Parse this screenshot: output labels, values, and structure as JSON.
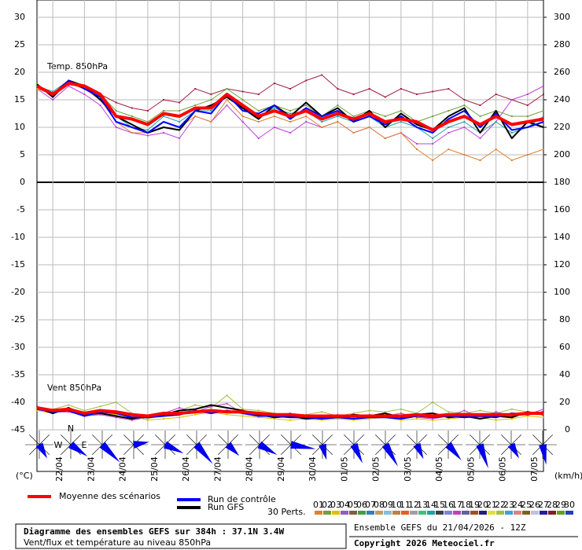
{
  "chart_data": {
    "type": "line",
    "labels": {
      "temp": "Temp. 850hPa",
      "wind": "Vent 850hPa",
      "y_unit": "(°C)",
      "y2_unit": "(km/h)",
      "perts": "30 Perts."
    },
    "footer": {
      "title": "Diagramme des ensembles GEFS sur 384h : 37.1N 3.4W",
      "subtitle": "Vent/flux et température au niveau 850hPa",
      "run": "Ensemble GEFS du 21/04/2026 - 12Z",
      "copyright": "Copyright 2026 Meteociel.fr"
    },
    "rose_labels": [
      "N",
      "W",
      "E"
    ],
    "x": [
      0,
      12,
      24,
      36,
      48,
      60,
      72,
      84,
      96,
      108,
      120,
      132,
      144,
      156,
      168,
      180,
      192,
      204,
      216,
      228,
      240,
      252,
      264,
      276,
      288,
      300,
      312,
      324,
      336,
      348,
      360,
      372,
      384
    ],
    "xlim": [
      0,
      384
    ],
    "xticks": [
      {
        "value": 12,
        "label": "22/04"
      },
      {
        "value": 36,
        "label": "23/04"
      },
      {
        "value": 60,
        "label": "24/04"
      },
      {
        "value": 84,
        "label": "25/04"
      },
      {
        "value": 108,
        "label": "26/04"
      },
      {
        "value": 132,
        "label": "27/04"
      },
      {
        "value": 156,
        "label": "28/04"
      },
      {
        "value": 180,
        "label": "29/04"
      },
      {
        "value": 204,
        "label": "30/04"
      },
      {
        "value": 228,
        "label": "01/05"
      },
      {
        "value": 252,
        "label": "02/05"
      },
      {
        "value": 276,
        "label": "03/05"
      },
      {
        "value": 300,
        "label": "04/05"
      },
      {
        "value": 324,
        "label": "05/05"
      },
      {
        "value": 348,
        "label": "06/05"
      },
      {
        "value": 372,
        "label": "07/05"
      }
    ],
    "ylim": [
      -45,
      30
    ],
    "yticks": [
      30,
      25,
      20,
      15,
      10,
      5,
      0,
      -5,
      -10,
      -15,
      -20,
      -25,
      -30,
      -35,
      -40,
      -45
    ],
    "y2lim": [
      0,
      300
    ],
    "y2ticks": [
      300,
      280,
      260,
      240,
      220,
      200,
      180,
      160,
      140,
      120,
      100,
      80,
      60,
      40,
      20,
      0
    ],
    "grid": true,
    "series": [
      {
        "color": "#a02040",
        "values": [
          17.5,
          16,
          18,
          17,
          16,
          14.5,
          13.5,
          13,
          15,
          14.5,
          17,
          16,
          17,
          16.5,
          16,
          18,
          17,
          18.5,
          19.5,
          17,
          16,
          17,
          15.5,
          17,
          16,
          16.5,
          17,
          15,
          14,
          16,
          15,
          14,
          16
        ]
      },
      {
        "color": "#c040e0",
        "values": [
          17,
          15,
          17.5,
          16,
          14,
          10,
          9,
          8.5,
          9,
          8,
          12,
          11,
          14,
          11,
          8,
          10,
          9,
          11,
          10,
          11,
          9,
          10,
          8,
          9,
          7,
          7,
          9,
          10,
          8,
          11,
          15,
          16,
          17.5
        ]
      },
      {
        "color": "#e08030",
        "values": [
          17,
          16,
          18,
          17,
          15,
          11,
          9,
          9,
          11,
          10,
          12,
          11,
          15,
          12,
          11,
          12,
          11,
          12,
          10,
          11,
          9,
          10,
          8,
          9,
          6,
          4,
          6,
          5,
          4,
          6,
          4,
          5,
          6
        ]
      },
      {
        "color": "#70a040",
        "values": [
          18,
          15.5,
          18,
          17.5,
          16,
          13,
          12,
          11,
          13,
          13,
          14,
          15,
          17,
          15,
          13,
          14,
          13,
          14,
          12,
          14,
          12,
          13,
          12,
          13,
          11,
          12,
          13,
          14,
          12,
          13,
          12,
          12,
          13
        ]
      },
      {
        "color": "#20a0a0",
        "values": [
          17.5,
          16.5,
          18.5,
          17,
          15.5,
          12,
          10,
          9.5,
          12,
          11,
          13,
          13,
          16,
          13.5,
          12,
          13.5,
          12.5,
          13,
          11,
          12,
          11,
          12,
          10,
          11,
          10,
          8,
          10,
          11,
          9,
          11,
          9,
          10,
          12
        ]
      },
      {
        "name": "Run GFS",
        "color": "#000000",
        "values": [
          17.8,
          15.5,
          18.5,
          17.5,
          15,
          12,
          10.5,
          9,
          10,
          9.5,
          13,
          14,
          15.5,
          13.5,
          11.5,
          14,
          12,
          14.5,
          12,
          13.5,
          11,
          13,
          10,
          12.5,
          10.5,
          9.5,
          12,
          13.5,
          9,
          13,
          8,
          11,
          10
        ]
      },
      {
        "name": "Run de contrôle",
        "color": "#0000ff",
        "values": [
          17.5,
          16,
          18.5,
          17,
          15.5,
          11,
          10,
          9,
          11,
          10,
          13,
          12.5,
          16,
          13,
          12.5,
          14,
          11.5,
          13.5,
          12,
          13,
          11,
          12,
          10.5,
          12,
          10,
          9,
          11.5,
          13,
          10,
          12.5,
          9.5,
          10,
          11
        ]
      },
      {
        "name": "Moyenne des scénarios",
        "color": "#ff0000",
        "values": [
          17.5,
          16,
          18,
          17.5,
          16,
          12,
          11.5,
          10.5,
          12.5,
          12,
          13.5,
          13.5,
          16,
          14,
          12,
          13,
          12,
          13,
          11.5,
          12.5,
          11.5,
          12.5,
          11,
          11.5,
          11,
          9.5,
          11,
          12,
          10.5,
          12,
          10.5,
          11,
          11.5
        ]
      },
      {
        "color": "#a0c040",
        "axis": "y2",
        "values": [
          15,
          15,
          18,
          14,
          17,
          20,
          12,
          8,
          11,
          14,
          18,
          16,
          25,
          15,
          14,
          12,
          10,
          11,
          13,
          10,
          12,
          14,
          13,
          15,
          12,
          20,
          13,
          12,
          14,
          12,
          15,
          13,
          11
        ]
      },
      {
        "color": "#c040c0",
        "axis": "y2",
        "values": [
          17,
          13,
          13,
          10,
          11,
          9,
          7,
          9,
          12,
          16,
          13,
          17,
          19,
          12,
          10,
          11,
          12,
          9,
          8,
          11,
          9,
          11,
          10,
          12,
          9,
          8,
          10,
          14,
          9,
          13,
          10,
          11,
          15
        ]
      },
      {
        "color": "#e0c000",
        "axis": "y2",
        "values": [
          14,
          12,
          15,
          13,
          12,
          11,
          10,
          7,
          8,
          9,
          11,
          13,
          11,
          10,
          9,
          8,
          7,
          8,
          7,
          8,
          7,
          8,
          9,
          7,
          8,
          7,
          8,
          9,
          9,
          7,
          8,
          10,
          9
        ]
      },
      {
        "color": "#000000",
        "axis": "y2",
        "values": [
          16,
          12,
          16,
          11,
          12,
          10,
          8,
          10,
          11,
          14,
          15,
          18,
          16,
          14,
          11,
          9,
          10,
          8,
          9,
          9,
          11,
          10,
          12,
          9,
          11,
          12,
          9,
          10,
          8,
          10,
          9,
          13,
          11
        ]
      },
      {
        "color": "#0000ff",
        "axis": "y2",
        "values": [
          15,
          13,
          14,
          10,
          13,
          12,
          9,
          9,
          10,
          11,
          14,
          12,
          14,
          12,
          10,
          10,
          9,
          9,
          8,
          9,
          8,
          9,
          9,
          8,
          10,
          9,
          10,
          9,
          10,
          9,
          12,
          11,
          13
        ]
      },
      {
        "color": "#ff0000",
        "axis": "y2",
        "values": [
          16,
          14,
          15,
          12,
          14,
          13,
          11,
          10,
          12,
          12,
          13,
          14,
          13,
          13,
          12,
          11,
          11,
          10,
          10,
          10,
          10,
          10,
          10,
          10,
          11,
          10,
          11,
          11,
          11,
          11,
          11,
          12,
          12
        ]
      }
    ],
    "perturbations": [
      {
        "name": "01",
        "color": "#e08030"
      },
      {
        "name": "02",
        "color": "#70a040"
      },
      {
        "name": "03",
        "color": "#e0c000"
      },
      {
        "name": "04",
        "color": "#9060c0"
      },
      {
        "name": "05",
        "color": "#806040"
      },
      {
        "name": "06",
        "color": "#40a040"
      },
      {
        "name": "07",
        "color": "#3080c0"
      },
      {
        "name": "08",
        "color": "#c0a060"
      },
      {
        "name": "09",
        "color": "#80c0e0"
      },
      {
        "name": "10",
        "color": "#c08040"
      },
      {
        "name": "11",
        "color": "#e06020"
      },
      {
        "name": "12",
        "color": "#a0a0a0"
      },
      {
        "name": "13",
        "color": "#40c080"
      },
      {
        "name": "14",
        "color": "#20a0a0"
      },
      {
        "name": "15",
        "color": "#404040"
      },
      {
        "name": "16",
        "color": "#8080e0"
      },
      {
        "name": "17",
        "color": "#c040c0"
      },
      {
        "name": "18",
        "color": "#6060a0"
      },
      {
        "name": "19",
        "color": "#a05020"
      },
      {
        "name": "20",
        "color": "#202080"
      },
      {
        "name": "21",
        "color": "#e0e040"
      },
      {
        "name": "22",
        "color": "#a0c040"
      },
      {
        "name": "23",
        "color": "#40a0e0"
      },
      {
        "name": "24",
        "color": "#e08080"
      },
      {
        "name": "25",
        "color": "#806020"
      },
      {
        "name": "26",
        "color": "#c0c0e0"
      },
      {
        "name": "27",
        "color": "#2020a0"
      },
      {
        "name": "28",
        "color": "#802020"
      },
      {
        "name": "29",
        "color": "#60a020"
      },
      {
        "name": "30",
        "color": "#2040c0"
      }
    ]
  }
}
